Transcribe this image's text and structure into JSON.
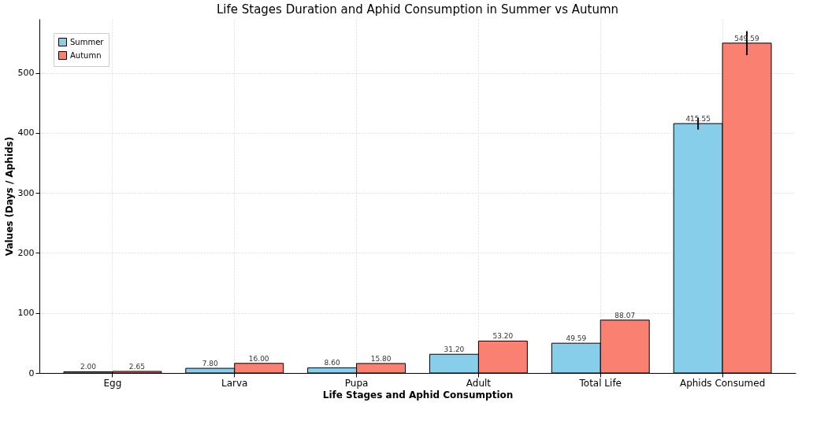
{
  "chart_data": {
    "type": "bar",
    "title": "Life Stages Duration and Aphid Consumption in Summer vs Autumn",
    "xlabel": "Life Stages and Aphid Consumption",
    "ylabel": "Values (Days / Aphids)",
    "categories": [
      "Egg",
      "Larva",
      "Pupa",
      "Adult",
      "Total Life",
      "Aphids Consumed"
    ],
    "series": [
      {
        "name": "Summer",
        "color": "#87ceeb",
        "values": [
          2.0,
          7.8,
          8.6,
          31.2,
          49.59,
          415.55
        ],
        "value_labels": [
          "2.00",
          "7.80",
          "8.60",
          "31.20",
          "49.59",
          "415.55"
        ],
        "errors": [
          null,
          null,
          null,
          null,
          null,
          10
        ]
      },
      {
        "name": "Autumn",
        "color": "#fa8072",
        "values": [
          2.65,
          16.0,
          15.8,
          53.2,
          88.07,
          549.59
        ],
        "value_labels": [
          "2.65",
          "16.00",
          "15.80",
          "53.20",
          "88.07",
          "549.59"
        ],
        "errors": [
          null,
          null,
          null,
          null,
          null,
          20
        ]
      }
    ],
    "ylim": [
      0,
      590
    ],
    "yticks": [
      0,
      100,
      200,
      300,
      400,
      500
    ],
    "grid": true,
    "legend": "top left"
  }
}
